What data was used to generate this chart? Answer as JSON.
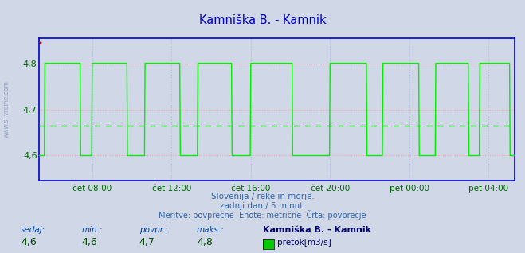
{
  "title": "Kamniška B. - Kamnik",
  "title_color": "#0000cc",
  "bg_color": "#d0d8e8",
  "plot_bg_color": "#d0d8e8",
  "grid_h_color": "#ff9999",
  "grid_h_style": "dotted",
  "grid_v_color": "#aabbdd",
  "grid_v_style": "dotted",
  "avg_line_color": "#00bb00",
  "avg_value": 4.665,
  "line_color": "#00ee00",
  "line_width": 1.0,
  "spine_color": "#0000cc",
  "tick_color": "#006600",
  "ylim": [
    4.545,
    4.855
  ],
  "yticks": [
    4.6,
    4.7,
    4.8
  ],
  "xtick_labels": [
    "čet 08:00",
    "čet 12:00",
    "čet 16:00",
    "čet 20:00",
    "pet 00:00",
    "pet 04:00"
  ],
  "xtick_positions": [
    96,
    240,
    384,
    528,
    672,
    816
  ],
  "n_points": 864,
  "footer_line1": "Slovenija / reke in morje.",
  "footer_line2": "zadnji dan / 5 minut.",
  "footer_line3": "Meritve: povprečne  Enote: metrične  Črta: povprečje",
  "footer_color": "#3366aa",
  "label_color": "#0044aa",
  "val_color": "#004400",
  "station_color": "#000066",
  "bottom_labels": [
    "sedaj:",
    "min.:",
    "povpr.:",
    "maks.:"
  ],
  "bottom_vals": [
    "4,6",
    "4,6",
    "4,7",
    "4,8"
  ],
  "bottom_station": "Kamniška B. - Kamnik",
  "bottom_legend": "pretok[m3/s]",
  "legend_box_color": "#00cc00",
  "watermark": "www.si-vreme.com",
  "watermark_color": "#8899bb",
  "pulse_low": 4.6,
  "pulse_high": 4.8,
  "pulse_starts": [
    10,
    96,
    192,
    288,
    384,
    528,
    624,
    720,
    800
  ],
  "pulse_ends": [
    75,
    160,
    256,
    350,
    460,
    595,
    690,
    780,
    855
  ]
}
